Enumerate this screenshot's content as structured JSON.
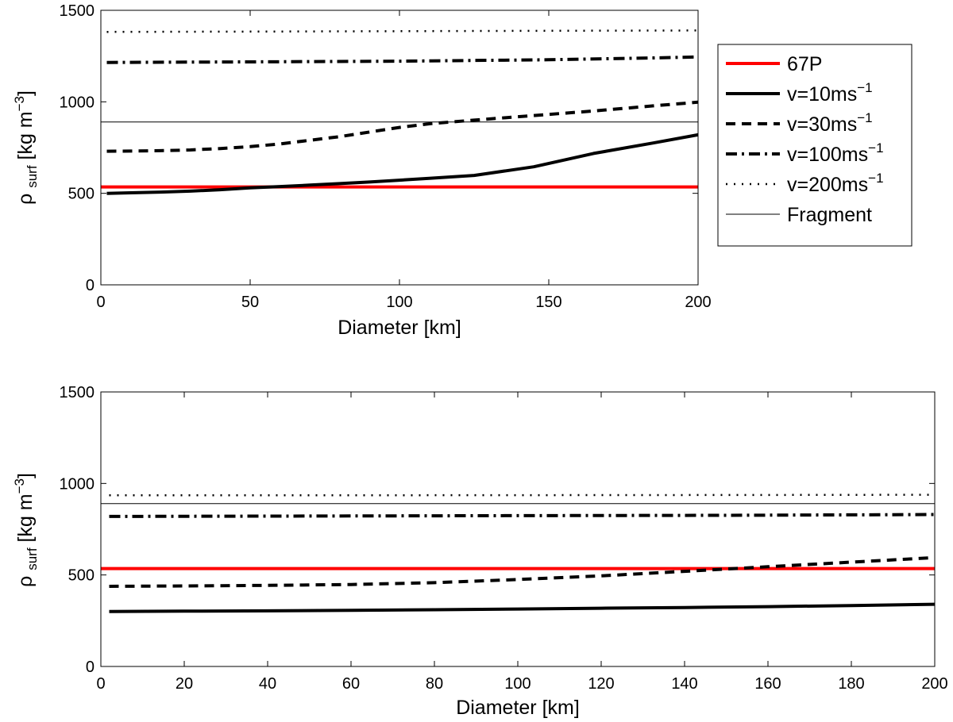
{
  "chart_data": [
    {
      "type": "line",
      "panel": "top",
      "xlabel": "Diameter [km]",
      "ylabel": {
        "symbol": "ρ",
        "sub": "surf",
        "unit_main": "[kg m",
        "unit_sup": "−3",
        "unit_end": "]"
      },
      "xlim": [
        0,
        200
      ],
      "ylim": [
        0,
        1500
      ],
      "xticks": [
        0,
        50,
        100,
        150,
        200
      ],
      "yticks": [
        0,
        500,
        1000,
        1500
      ],
      "grid": false,
      "legend_position": "outside-right",
      "series": [
        {
          "key": "67P",
          "name": "67P",
          "style": "red",
          "color": "#ff0000",
          "x": [
            0,
            200
          ],
          "y": [
            535,
            535
          ]
        },
        {
          "key": "v10",
          "name": "v=10ms",
          "sup": "−1",
          "style": "solid",
          "color": "#000000",
          "x": [
            2,
            10,
            20,
            30,
            40,
            50,
            60,
            70,
            80,
            90,
            100,
            110,
            125,
            145,
            165,
            185,
            200
          ],
          "y": [
            500,
            503,
            507,
            512,
            520,
            530,
            537,
            545,
            553,
            562,
            572,
            582,
            598,
            645,
            718,
            775,
            820
          ]
        },
        {
          "key": "v30",
          "name": "v=30ms",
          "sup": "−1",
          "style": "dashed",
          "color": "#000000",
          "x": [
            2,
            10,
            20,
            30,
            40,
            50,
            60,
            70,
            80,
            90,
            100,
            110,
            125,
            145,
            165,
            185,
            200
          ],
          "y": [
            730,
            731,
            733,
            737,
            745,
            755,
            770,
            790,
            810,
            835,
            860,
            880,
            900,
            925,
            950,
            978,
            998
          ]
        },
        {
          "key": "v100",
          "name": "v=100ms",
          "sup": "−1",
          "style": "dashdot",
          "color": "#000000",
          "x": [
            2,
            50,
            100,
            150,
            185,
            200
          ],
          "y": [
            1215,
            1218,
            1222,
            1230,
            1240,
            1245
          ]
        },
        {
          "key": "v200",
          "name": "v=200ms",
          "sup": "−1",
          "style": "dotted",
          "color": "#000000",
          "x": [
            2,
            50,
            100,
            150,
            200
          ],
          "y": [
            1382,
            1384,
            1386,
            1388,
            1390
          ]
        },
        {
          "key": "frag",
          "name": "Fragment",
          "style": "thin",
          "color": "#000000",
          "x": [
            0,
            200
          ],
          "y": [
            890,
            890
          ]
        }
      ]
    },
    {
      "type": "line",
      "panel": "bottom",
      "xlabel": "Diameter [km]",
      "ylabel": {
        "symbol": "ρ",
        "sub": "surf",
        "unit_main": "[kg m",
        "unit_sup": "−3",
        "unit_end": "]"
      },
      "xlim": [
        0,
        200
      ],
      "ylim": [
        0,
        1500
      ],
      "xticks": [
        0,
        20,
        40,
        60,
        80,
        100,
        120,
        140,
        160,
        180,
        200
      ],
      "yticks": [
        0,
        500,
        1000,
        1500
      ],
      "grid": false,
      "series": [
        {
          "key": "67P",
          "name": "67P",
          "style": "red",
          "color": "#ff0000",
          "x": [
            0,
            200
          ],
          "y": [
            535,
            535
          ]
        },
        {
          "key": "v10",
          "name": "v=10ms",
          "sup": "−1",
          "style": "solid",
          "color": "#000000",
          "x": [
            2,
            20,
            40,
            60,
            80,
            100,
            120,
            140,
            160,
            180,
            200
          ],
          "y": [
            300,
            302,
            304,
            307,
            310,
            314,
            318,
            322,
            327,
            333,
            340
          ]
        },
        {
          "key": "v30",
          "name": "v=30ms",
          "sup": "−1",
          "style": "dashed",
          "color": "#000000",
          "x": [
            2,
            20,
            40,
            60,
            80,
            100,
            120,
            140,
            160,
            180,
            200
          ],
          "y": [
            438,
            440,
            443,
            448,
            458,
            475,
            495,
            520,
            545,
            570,
            595
          ]
        },
        {
          "key": "v100",
          "name": "v=100ms",
          "sup": "−1",
          "style": "dashdot",
          "color": "#000000",
          "x": [
            2,
            50,
            100,
            150,
            200
          ],
          "y": [
            820,
            822,
            824,
            826,
            830
          ]
        },
        {
          "key": "v200",
          "name": "v=200ms",
          "sup": "−1",
          "style": "dotted",
          "color": "#000000",
          "x": [
            2,
            50,
            100,
            150,
            200
          ],
          "y": [
            935,
            935,
            936,
            937,
            938
          ]
        },
        {
          "key": "frag",
          "name": "Fragment",
          "style": "thin",
          "color": "#000000",
          "x": [
            0,
            200
          ],
          "y": [
            890,
            890
          ]
        }
      ]
    }
  ],
  "legend": [
    {
      "key": "67P",
      "style": "red",
      "label": "67P",
      "sup": ""
    },
    {
      "key": "v10",
      "style": "solid",
      "label": "v=10ms",
      "sup": "−1"
    },
    {
      "key": "v30",
      "style": "dashed",
      "label": "v=30ms",
      "sup": "−1"
    },
    {
      "key": "v100",
      "style": "dashdot",
      "label": "v=100ms",
      "sup": "−1"
    },
    {
      "key": "v200",
      "style": "dotted",
      "label": "v=200ms",
      "sup": "−1"
    },
    {
      "key": "frag",
      "style": "thin",
      "label": "Fragment",
      "sup": ""
    }
  ]
}
